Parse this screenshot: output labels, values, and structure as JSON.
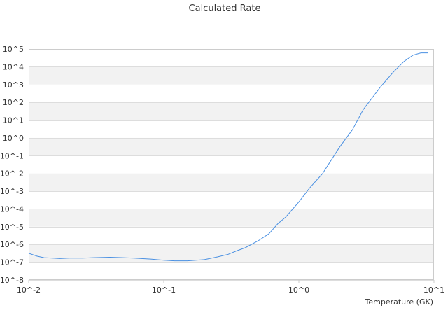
{
  "chart_data": {
    "type": "line",
    "title": "Calculated Rate",
    "xlabel": "Temperature (GK)",
    "ylabel": "",
    "x_scale": "log",
    "y_scale": "log",
    "xlim": [
      0.01,
      10
    ],
    "ylim": [
      1e-08,
      100000
    ],
    "grid": "alternating horizontal bands",
    "legend": "none",
    "x_ticks": [
      "10^-2",
      "10^-1",
      "10^0",
      "10^1"
    ],
    "y_ticks": [
      "10^5",
      "10^4",
      "10^3",
      "10^2",
      "10^1",
      "10^0",
      "10^-1",
      "10^-2",
      "10^-3",
      "10^-4",
      "10^-5",
      "10^-6",
      "10^-7",
      "10^-8"
    ],
    "series": [
      {
        "color": "#4a90e2",
        "x": [
          0.01,
          0.0115,
          0.013,
          0.015,
          0.017,
          0.02,
          0.025,
          0.03,
          0.04,
          0.05,
          0.06,
          0.08,
          0.1,
          0.12,
          0.15,
          0.2,
          0.25,
          0.3,
          0.35,
          0.4,
          0.5,
          0.6,
          0.7,
          0.8,
          1.0,
          1.2,
          1.5,
          2.0,
          2.5,
          3.0,
          4.0,
          5.0,
          6.0,
          7.0,
          8.0,
          9.0
        ],
        "y": [
          3.2e-07,
          2.2e-07,
          1.8e-07,
          1.7e-07,
          1.6e-07,
          1.7e-07,
          1.7e-07,
          1.8e-07,
          1.9e-07,
          1.8e-07,
          1.7e-07,
          1.5e-07,
          1.3e-07,
          1.2e-07,
          1.2e-07,
          1.4e-07,
          2e-07,
          2.8e-07,
          4.5e-07,
          6.5e-07,
          1.6e-06,
          4e-06,
          1.5e-05,
          3.5e-05,
          0.00025,
          0.0015,
          0.01,
          0.3,
          3,
          40,
          700,
          5000,
          20000,
          45000,
          60000,
          60000
        ]
      }
    ]
  }
}
